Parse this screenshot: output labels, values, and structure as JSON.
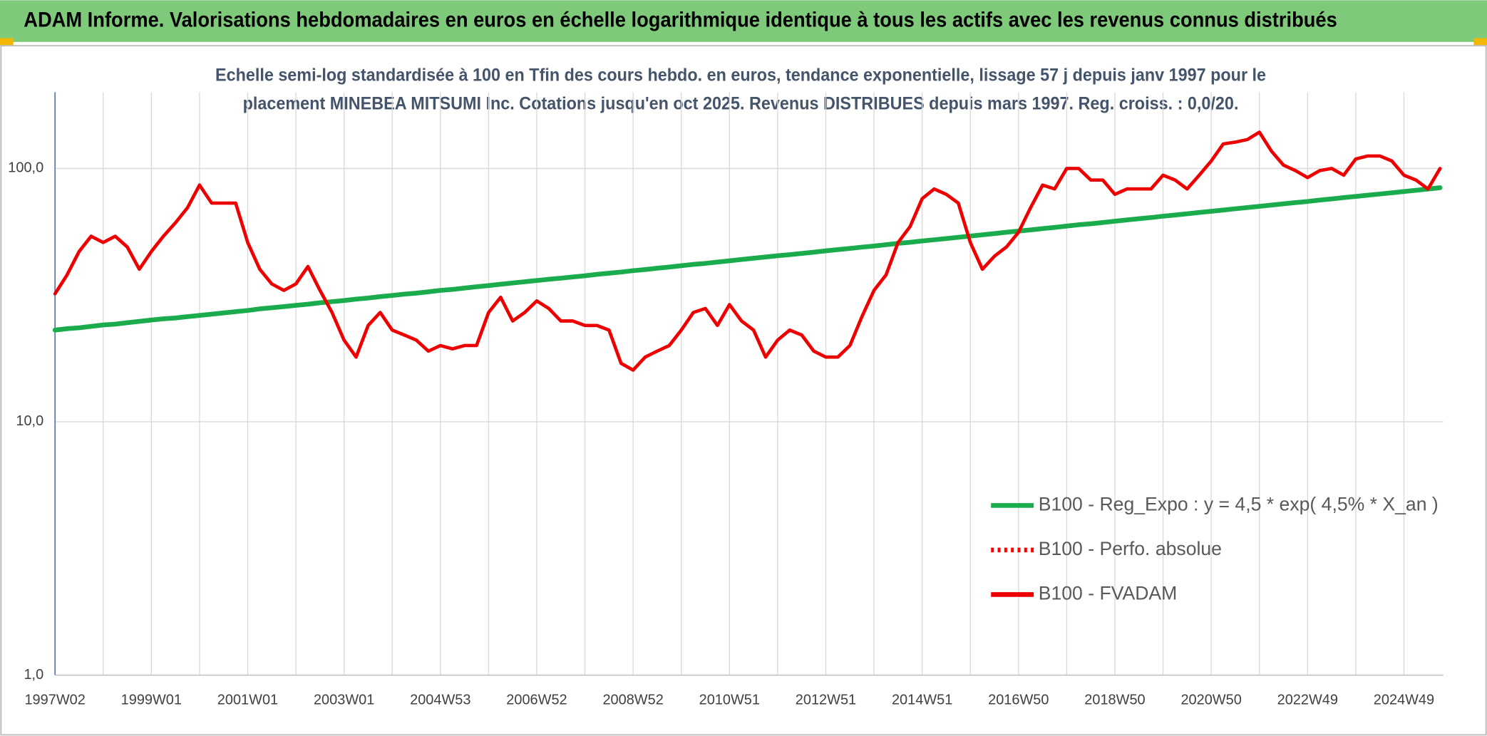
{
  "chart_data": {
    "type": "line",
    "title": "ADAM Informe. Valorisations hebdomadaires en euros en échelle logarithmique identique à tous les actifs avec les revenus connus distribués",
    "subtitle": [
      "Echelle semi-log standardisée à 100 en Tfin des cours hebdo. en euros, tendance exponentielle, lissage 57 j depuis janv 1997 pour le",
      "placement MINEBEA MITSUMI Inc. Cotations jusqu'en oct 2025. Revenus DISTRIBUES depuis mars 1997. Reg. croiss. : 0,0/20."
    ],
    "log_scale": true,
    "grid": true,
    "legend": "lower right",
    "ylim": [
      1,
      200
    ],
    "yticks": [
      {
        "value": 1,
        "label": "1,0"
      },
      {
        "value": 10,
        "label": "10,0"
      },
      {
        "value": 100,
        "label": "100,0"
      }
    ],
    "categories": [
      "1997W02",
      null,
      null,
      null,
      null,
      null,
      null,
      null,
      "1999W01",
      null,
      null,
      null,
      null,
      null,
      null,
      null,
      "2001W01",
      null,
      null,
      null,
      null,
      null,
      null,
      null,
      "2003W01",
      null,
      null,
      null,
      null,
      null,
      null,
      null,
      "2004W53",
      null,
      null,
      null,
      null,
      null,
      null,
      null,
      "2006W52",
      null,
      null,
      null,
      null,
      null,
      null,
      null,
      "2008W52",
      null,
      null,
      null,
      null,
      null,
      null,
      null,
      "2010W51",
      null,
      null,
      null,
      null,
      null,
      null,
      null,
      "2012W51",
      null,
      null,
      null,
      null,
      null,
      null,
      null,
      "2014W51",
      null,
      null,
      null,
      null,
      null,
      null,
      null,
      "2016W50",
      null,
      null,
      null,
      null,
      null,
      null,
      null,
      "2018W50",
      null,
      null,
      null,
      null,
      null,
      null,
      null,
      "2020W50",
      null,
      null,
      null,
      null,
      null,
      null,
      null,
      "2022W49",
      null,
      null,
      null,
      null,
      null,
      null,
      null,
      "2024W49",
      null,
      null,
      null
    ],
    "series": [
      {
        "name": "B100 - Reg_Expo : y = 4,5 * exp( 4,5% *  X_an )",
        "color": "#1aac4c",
        "style": "solid",
        "values": [
          23.0,
          23.3,
          23.5,
          23.8,
          24.1,
          24.3,
          24.6,
          24.9,
          25.2,
          25.5,
          25.7,
          26.0,
          26.3,
          26.6,
          26.9,
          27.2,
          27.5,
          27.9,
          28.2,
          28.5,
          28.8,
          29.1,
          29.5,
          29.8,
          30.1,
          30.5,
          30.8,
          31.2,
          31.5,
          31.9,
          32.2,
          32.6,
          33.0,
          33.3,
          33.7,
          34.1,
          34.5,
          34.9,
          35.3,
          35.7,
          36.1,
          36.5,
          36.9,
          37.3,
          37.7,
          38.2,
          38.6,
          39.0,
          39.5,
          39.9,
          40.4,
          40.8,
          41.3,
          41.8,
          42.2,
          42.7,
          43.2,
          43.7,
          44.2,
          44.7,
          45.2,
          45.7,
          46.2,
          46.7,
          47.3,
          47.8,
          48.3,
          48.9,
          49.4,
          50.0,
          50.6,
          51.1,
          51.7,
          52.3,
          52.9,
          53.5,
          54.1,
          54.7,
          55.3,
          56.0,
          56.6,
          57.2,
          57.9,
          58.5,
          59.2,
          59.9,
          60.5,
          61.2,
          61.9,
          62.6,
          63.3,
          64.0,
          64.8,
          65.5,
          66.2,
          67.0,
          67.7,
          68.5,
          69.3,
          70.1,
          70.9,
          71.7,
          72.5,
          73.3,
          74.1,
          75.0,
          75.8,
          76.7,
          77.5,
          78.4,
          79.3,
          80.2,
          81.1,
          82.0,
          82.9,
          83.9
        ]
      },
      {
        "name": "B100 - Perfo. absolue",
        "color": "#ff0000",
        "style": "dotted",
        "values": [
          null,
          null,
          null,
          null,
          null,
          null,
          null,
          null,
          null,
          null,
          null,
          null,
          null,
          null,
          null,
          null,
          null,
          null,
          null,
          null,
          null,
          null,
          null,
          null,
          null,
          null,
          null,
          null,
          null,
          null,
          null,
          null,
          null,
          null,
          null,
          null,
          null,
          null,
          null,
          null,
          null,
          null,
          null,
          null,
          null,
          null,
          null,
          null,
          null,
          null,
          null,
          null,
          null,
          null,
          null,
          null,
          null,
          null,
          null,
          null,
          null,
          null,
          null,
          null,
          null,
          null,
          null,
          null,
          null,
          null,
          null,
          null,
          null,
          null,
          null,
          null,
          null,
          null,
          null,
          null,
          null,
          null,
          null,
          null,
          null,
          null,
          null,
          null,
          null,
          null,
          null,
          null,
          null,
          null,
          null,
          null,
          null,
          null,
          null,
          null,
          null,
          null,
          null,
          null,
          null,
          null,
          null,
          null,
          null,
          null,
          null,
          null,
          null,
          null,
          null,
          null
        ]
      },
      {
        "name": "B100 - FVADAM",
        "color": "#ee0000",
        "style": "solid",
        "values": [
          32,
          38,
          47,
          54,
          51,
          54,
          49,
          40,
          47,
          54,
          61,
          70,
          86,
          73,
          73,
          73,
          51,
          40,
          35,
          33,
          35,
          41,
          33,
          27,
          21,
          18,
          24,
          27,
          23,
          22,
          21,
          19,
          20,
          19.4,
          20,
          20,
          27,
          31,
          25,
          27,
          30,
          28,
          25,
          25,
          24,
          24,
          23,
          17,
          16,
          18,
          19,
          20,
          23,
          27,
          28,
          24,
          29,
          25,
          23,
          18,
          21,
          23,
          22,
          19,
          18,
          18,
          20,
          26,
          33,
          38,
          51,
          59,
          76,
          83,
          79,
          73,
          51,
          40,
          45,
          49,
          56,
          70,
          86,
          83,
          100,
          100,
          90,
          90,
          79,
          83,
          83,
          83,
          94,
          90,
          83,
          94,
          107,
          125,
          127,
          130,
          139,
          117,
          103,
          98,
          92,
          98,
          100,
          94,
          109,
          112,
          112,
          107,
          94,
          90,
          83,
          100
        ]
      }
    ]
  }
}
